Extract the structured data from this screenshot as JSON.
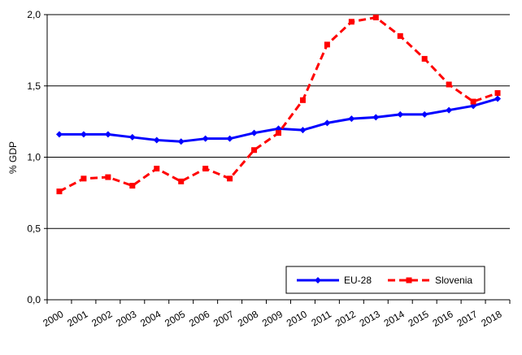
{
  "chart_data": {
    "type": "line",
    "title": "",
    "xlabel": "",
    "ylabel": "% GDP",
    "categories": [
      "2000",
      "2001",
      "2002",
      "2003",
      "2004",
      "2005",
      "2006",
      "2007",
      "2008",
      "2009",
      "2010",
      "2011",
      "2012",
      "2013",
      "2014",
      "2015",
      "2016",
      "2017",
      "2018"
    ],
    "ylim": [
      0,
      2.0
    ],
    "yticks": [
      "0,0",
      "0,5",
      "1,0",
      "1,5",
      "2,0"
    ],
    "grid": true,
    "legend_position": "bottom-right",
    "series": [
      {
        "name": "EU-28",
        "color": "#0000FF",
        "line_style": "solid",
        "marker": "diamond",
        "values": [
          1.16,
          1.16,
          1.16,
          1.14,
          1.12,
          1.11,
          1.13,
          1.13,
          1.17,
          1.2,
          1.19,
          1.24,
          1.27,
          1.28,
          1.3,
          1.3,
          1.33,
          1.36,
          1.41
        ]
      },
      {
        "name": "Slovenia",
        "color": "#FF0000",
        "line_style": "dashed",
        "marker": "square",
        "values": [
          0.76,
          0.85,
          0.86,
          0.8,
          0.92,
          0.83,
          0.92,
          0.85,
          1.05,
          1.17,
          1.4,
          1.79,
          1.95,
          1.98,
          1.85,
          1.69,
          1.51,
          1.39,
          1.45
        ]
      }
    ]
  }
}
